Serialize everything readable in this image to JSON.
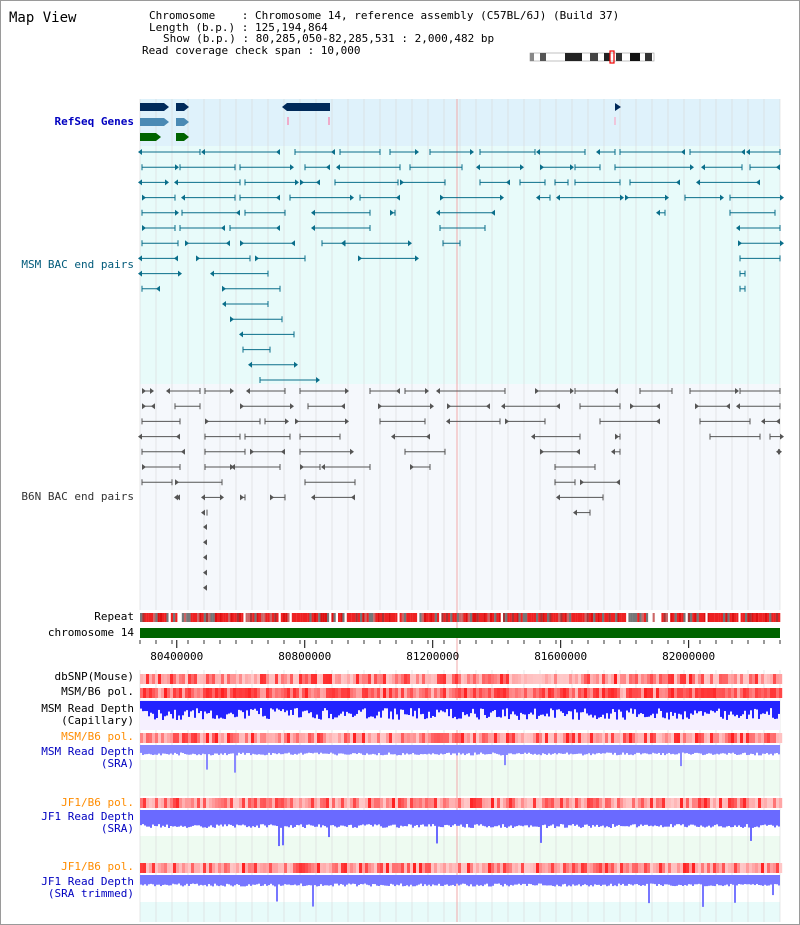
{
  "view": {
    "title": "Map View",
    "info": [
      "Chromosome    : Chromosome 14, reference assembly (C57BL/6J) (Build 37)",
      "Length (b.p.) : 125,194,864",
      "Show (b.p.) : 80,285,050-82,285,531 : 2,000,482 bp",
      "Read coverage check span : 10,000"
    ]
  },
  "axis": {
    "start": 80285050,
    "end": 82285531,
    "ticks": [
      {
        "value": 80400000,
        "label": "80400000"
      },
      {
        "value": 80800000,
        "label": "80800000"
      },
      {
        "value": 81200000,
        "label": "81200000"
      },
      {
        "value": 81600000,
        "label": "81600000"
      },
      {
        "value": 82000000,
        "label": "82000000"
      }
    ]
  },
  "tracks": {
    "refseq": {
      "label": "RefSeq Genes",
      "color": "#0000c0"
    },
    "msm_bac": {
      "label": "MSM BAC end pairs",
      "color": "#005a7a"
    },
    "b6n_bac": {
      "label": "B6N BAC end pairs",
      "color": "#333333"
    },
    "repeat": {
      "label": "Repeat",
      "color": "#000000"
    },
    "chromosome": {
      "label": "chromosome 14",
      "color": "#000000"
    },
    "dbsnp": {
      "label": "dbSNP(Mouse)",
      "color": "#000000"
    },
    "msm_b6_pol": {
      "label": "MSM/B6 pol.",
      "color": "#000000"
    },
    "msm_depth_cap": {
      "label": "MSM Read Depth\n(Capillary)",
      "color": "#000000"
    },
    "msm_b6_pol_sra": {
      "label": "MSM/B6 pol.",
      "color": "#ff8c00"
    },
    "msm_depth_sra": {
      "label": "MSM Read Depth\n(SRA)",
      "color": "#0000c0"
    },
    "jf1_b6_pol": {
      "label": "JF1/B6 pol.",
      "color": "#ff8c00"
    },
    "jf1_depth_sra": {
      "label": "JF1 Read Depth\n(SRA)",
      "color": "#0000c0"
    },
    "jf1_b6_pol_t": {
      "label": "JF1/B6 pol.",
      "color": "#ff8c00"
    },
    "jf1_depth_trim": {
      "label": "JF1 Read Depth\n(SRA trimmed)",
      "color": "#0000c0"
    }
  },
  "colors": {
    "refseq_bg": "#dff2fb",
    "msm_bg": "#e8fbfa",
    "b6n_bg": "#f5f8fc",
    "sra_bg": "#eefbf1",
    "trim_bg": "#e8fbfa",
    "dark_blue": "#002a5a",
    "mid_blue": "#4a8ab4",
    "green": "#006400",
    "teal": "#0a6e8a",
    "gray": "#555555",
    "depth_blue": "#2222ff",
    "depth_light": "#8888ff",
    "pol_red": "#ff3333",
    "pol_pink": "#ffb4b4"
  }
}
